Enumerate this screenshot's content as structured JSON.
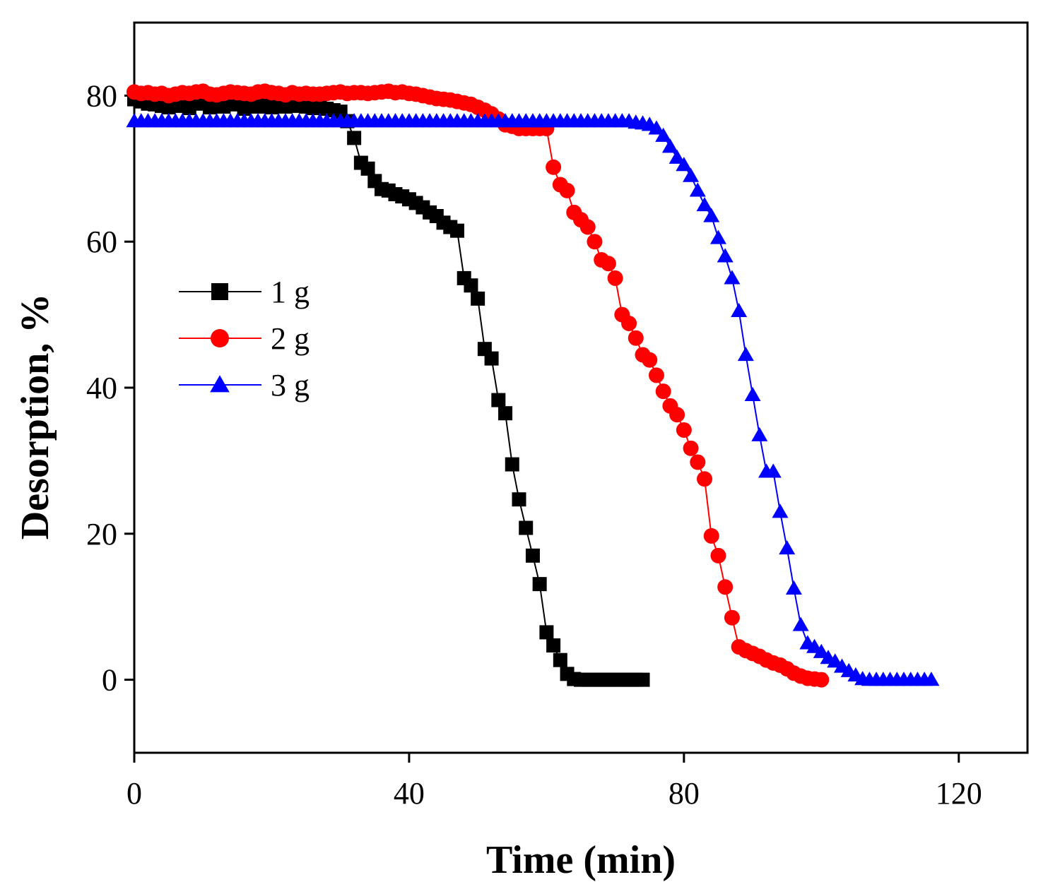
{
  "chart_data": {
    "type": "line",
    "title": "",
    "xlabel": "Time (min)",
    "ylabel": "Desorption, %",
    "xlim": [
      0,
      130
    ],
    "ylim": [
      -10,
      90
    ],
    "xticks": [
      0,
      40,
      80,
      120
    ],
    "yticks": [
      0,
      20,
      40,
      60,
      80
    ],
    "xtick_labels": [
      "0",
      "40",
      "80",
      "120"
    ],
    "ytick_labels": [
      "0",
      "20",
      "40",
      "60",
      "80"
    ],
    "grid": false,
    "legend_position": "center-left",
    "series": [
      {
        "name": "1 g",
        "color": "#000000",
        "marker": "square",
        "x": [
          0,
          1,
          2,
          3,
          4,
          5,
          6,
          7,
          8,
          9,
          10,
          11,
          12,
          13,
          14,
          15,
          16,
          17,
          18,
          19,
          20,
          21,
          22,
          23,
          24,
          25,
          26,
          27,
          28,
          29,
          30,
          31,
          32,
          33,
          34,
          35,
          36,
          37,
          38,
          39,
          40,
          41,
          42,
          43,
          44,
          45,
          46,
          47,
          48,
          49,
          50,
          51,
          52,
          53,
          54,
          55,
          56,
          57,
          58,
          59,
          60,
          61,
          62,
          63,
          64,
          65,
          66,
          67,
          68,
          69,
          70,
          71,
          72,
          73,
          74
        ],
        "y": [
          79.5,
          79.2,
          78.9,
          78.8,
          78.6,
          78.4,
          78.8,
          78.6,
          78.3,
          78.9,
          79.0,
          78.4,
          78.6,
          78.5,
          78.9,
          78.8,
          78.2,
          78.6,
          78.5,
          78.8,
          78.4,
          78.6,
          78.5,
          78.6,
          79.0,
          78.5,
          78.3,
          78.4,
          78.2,
          78.0,
          77.8,
          76.5,
          74.2,
          70.8,
          70.0,
          68.3,
          67.2,
          67.0,
          66.5,
          66.2,
          65.8,
          65.3,
          64.7,
          64.0,
          63.5,
          62.6,
          62.0,
          61.5,
          55.0,
          54.0,
          52.2,
          45.3,
          44.0,
          38.3,
          36.5,
          29.5,
          24.7,
          20.8,
          17.0,
          13.1,
          6.5,
          4.7,
          2.7,
          0.8,
          0.1,
          0,
          0,
          0,
          0,
          0,
          0,
          0,
          0,
          0,
          0
        ]
      },
      {
        "name": "2 g",
        "color": "#ff0000",
        "marker": "circle",
        "x": [
          0,
          1,
          2,
          3,
          4,
          5,
          6,
          7,
          8,
          9,
          10,
          11,
          12,
          13,
          14,
          15,
          16,
          17,
          18,
          19,
          20,
          21,
          22,
          23,
          24,
          25,
          26,
          27,
          28,
          29,
          30,
          31,
          32,
          33,
          34,
          35,
          36,
          37,
          38,
          39,
          40,
          41,
          42,
          43,
          44,
          45,
          46,
          47,
          48,
          49,
          50,
          51,
          52,
          53,
          54,
          55,
          56,
          57,
          58,
          59,
          60,
          61,
          62,
          63,
          64,
          65,
          66,
          67,
          68,
          69,
          70,
          71,
          72,
          73,
          74,
          75,
          76,
          77,
          78,
          79,
          80,
          81,
          82,
          83,
          84,
          85,
          86,
          87,
          88,
          89,
          90,
          91,
          92,
          93,
          94,
          95,
          96,
          97,
          98,
          99,
          100
        ],
        "y": [
          80.5,
          80.3,
          80.4,
          80.2,
          80.3,
          80.0,
          80.2,
          80.4,
          80.3,
          80.5,
          80.6,
          80.2,
          80.1,
          80.3,
          80.5,
          80.4,
          80.3,
          80.2,
          80.5,
          80.6,
          80.4,
          80.3,
          80.1,
          80.4,
          80.2,
          80.3,
          80.2,
          80.2,
          80.3,
          80.4,
          80.5,
          80.3,
          80.4,
          80.4,
          80.3,
          80.4,
          80.5,
          80.6,
          80.4,
          80.5,
          80.3,
          80.2,
          80.0,
          79.8,
          79.6,
          79.5,
          79.4,
          79.2,
          79.0,
          78.8,
          78.4,
          78.0,
          77.5,
          76.8,
          76.0,
          75.8,
          75.5,
          75.5,
          75.5,
          75.5,
          75.5,
          70.2,
          67.8,
          67.0,
          64.0,
          63.0,
          62.0,
          60.0,
          57.5,
          57.0,
          55.0,
          50.0,
          48.8,
          46.8,
          44.5,
          43.8,
          41.7,
          39.5,
          37.5,
          36.3,
          34.2,
          31.7,
          29.8,
          27.5,
          19.7,
          17.0,
          12.7,
          8.5,
          4.5,
          4.0,
          3.6,
          3.2,
          2.7,
          2.3,
          2.0,
          1.5,
          0.9,
          0.5,
          0.2,
          0.1,
          0
        ]
      },
      {
        "name": "3 g",
        "color": "#0000ff",
        "marker": "triangle",
        "x": [
          0,
          1,
          2,
          3,
          4,
          5,
          6,
          7,
          8,
          9,
          10,
          11,
          12,
          13,
          14,
          15,
          16,
          17,
          18,
          19,
          20,
          21,
          22,
          23,
          24,
          25,
          26,
          27,
          28,
          29,
          30,
          31,
          32,
          33,
          34,
          35,
          36,
          37,
          38,
          39,
          40,
          41,
          42,
          43,
          44,
          45,
          46,
          47,
          48,
          49,
          50,
          51,
          52,
          53,
          54,
          55,
          56,
          57,
          58,
          59,
          60,
          61,
          62,
          63,
          64,
          65,
          66,
          67,
          68,
          69,
          70,
          71,
          72,
          73,
          74,
          75,
          76,
          77,
          78,
          79,
          80,
          81,
          82,
          83,
          84,
          85,
          86,
          87,
          88,
          89,
          90,
          91,
          92,
          93,
          94,
          95,
          96,
          97,
          98,
          99,
          100,
          101,
          102,
          103,
          104,
          105,
          106,
          107,
          108,
          109,
          110,
          111,
          112,
          113,
          114,
          115,
          116
        ],
        "y": [
          76.5,
          76.5,
          76.5,
          76.5,
          76.5,
          76.5,
          76.5,
          76.5,
          76.5,
          76.5,
          76.5,
          76.5,
          76.5,
          76.5,
          76.5,
          76.5,
          76.5,
          76.5,
          76.5,
          76.5,
          76.5,
          76.5,
          76.5,
          76.5,
          76.5,
          76.5,
          76.5,
          76.5,
          76.5,
          76.5,
          76.5,
          76.5,
          76.5,
          76.5,
          76.5,
          76.5,
          76.5,
          76.5,
          76.5,
          76.5,
          76.5,
          76.5,
          76.5,
          76.5,
          76.5,
          76.5,
          76.5,
          76.5,
          76.5,
          76.5,
          76.5,
          76.5,
          76.5,
          76.5,
          76.5,
          76.5,
          76.5,
          76.5,
          76.5,
          76.5,
          76.5,
          76.5,
          76.5,
          76.5,
          76.5,
          76.5,
          76.5,
          76.5,
          76.5,
          76.5,
          76.5,
          76.5,
          76.5,
          76.3,
          76.2,
          76.0,
          75.5,
          74.5,
          73.0,
          71.5,
          70.5,
          69.0,
          67.0,
          65.0,
          63.5,
          60.5,
          58.0,
          55.0,
          50.5,
          44.5,
          39.0,
          33.5,
          28.5,
          28.5,
          23.0,
          18.0,
          12.5,
          7.5,
          5.0,
          4.5,
          3.8,
          3.0,
          2.5,
          1.8,
          1.2,
          0.6,
          0.1,
          0,
          0,
          0,
          0,
          0,
          0,
          0,
          0,
          0,
          0
        ]
      }
    ]
  }
}
